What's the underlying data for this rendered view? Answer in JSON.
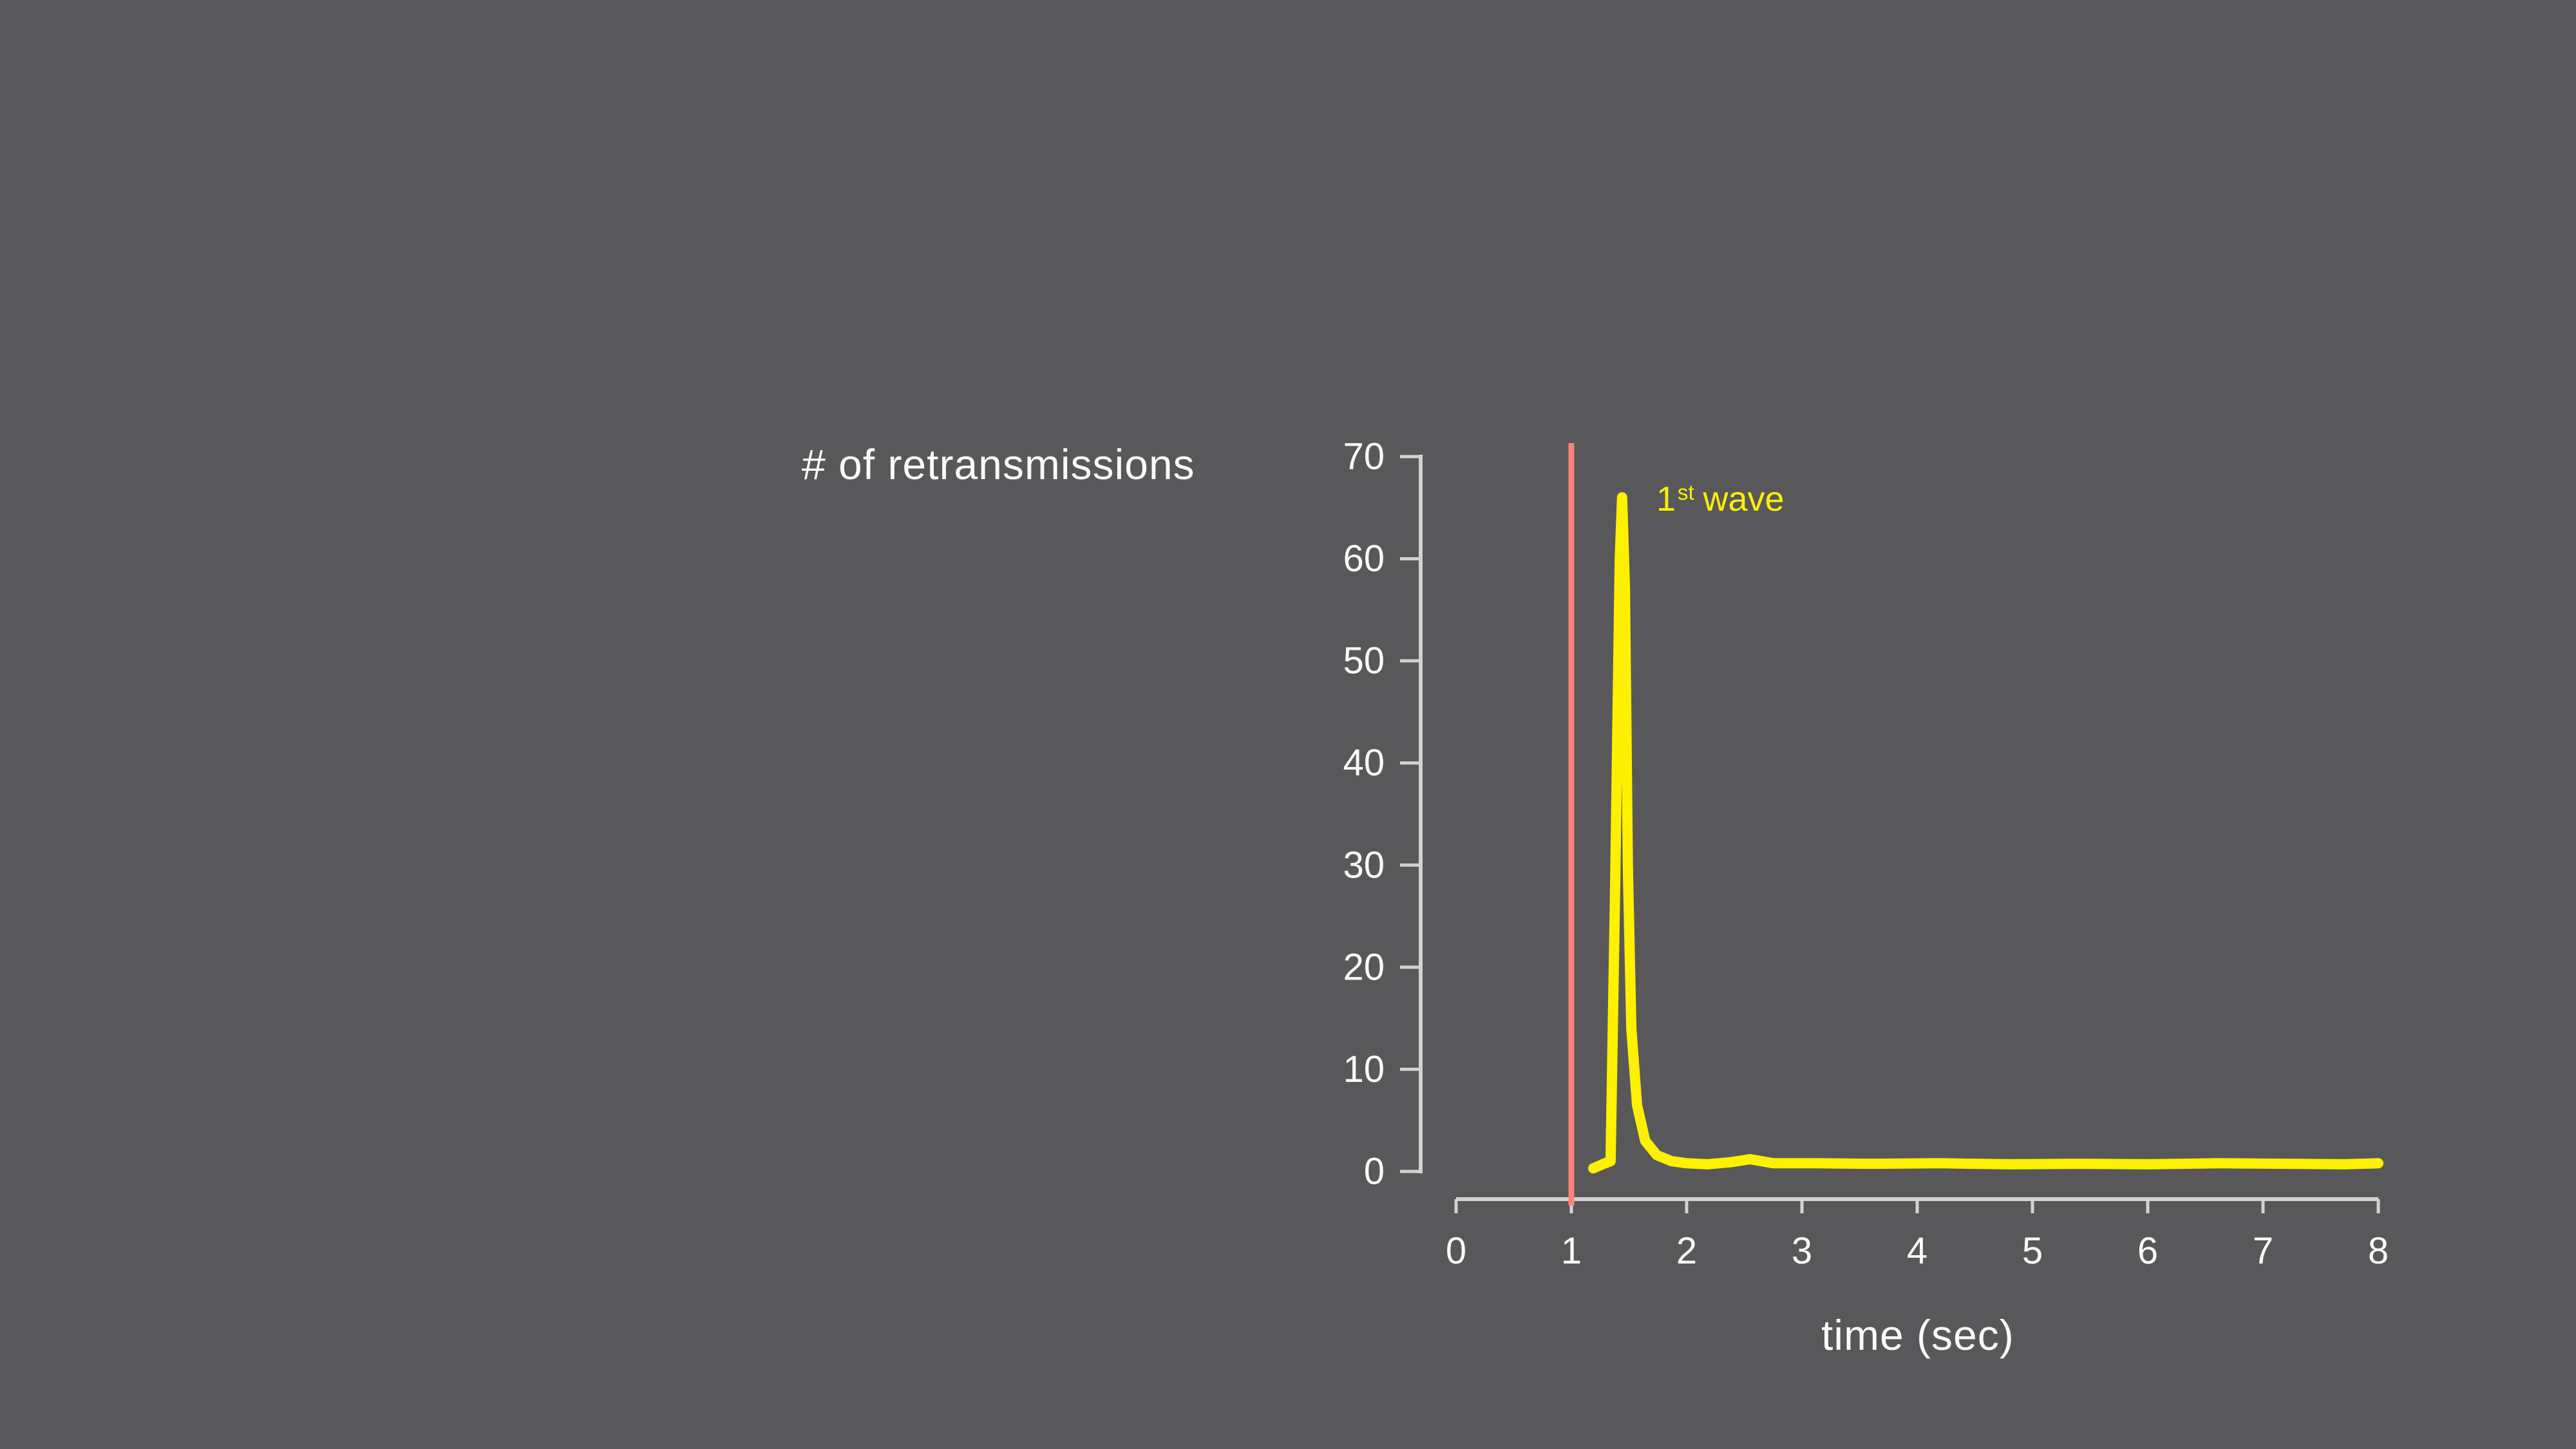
{
  "slide": {
    "background_color": "#58585A"
  },
  "chart_data": {
    "type": "line",
    "title": "# of retransmissions",
    "xlabel": "time (sec)",
    "ylabel": "# of retransmissions",
    "xlim": [
      0,
      8
    ],
    "ylim": [
      0,
      70
    ],
    "x_ticks": [
      0,
      1,
      2,
      3,
      4,
      5,
      6,
      7,
      8
    ],
    "y_ticks": [
      0,
      10,
      20,
      30,
      40,
      50,
      60,
      70
    ],
    "grid": false,
    "legend": "none",
    "colors": {
      "axis": "#d2d2d2",
      "tick_label": "#fafafa",
      "series": "#fdf000",
      "event_line": "#f9857c"
    },
    "series": [
      {
        "name": "retransmissions",
        "color": "#fdf000",
        "x": [
          1.19,
          1.27,
          1.34,
          1.38,
          1.42,
          1.44,
          1.465,
          1.49,
          1.52,
          1.57,
          1.64,
          1.74,
          1.87,
          2.0,
          2.18,
          2.38,
          2.55,
          2.75,
          3.1,
          3.6,
          4.2,
          4.8,
          5.4,
          6.0,
          6.6,
          7.2,
          7.7,
          8.0
        ],
        "y": [
          0.3,
          0.7,
          1.0,
          28,
          60,
          66,
          57,
          30,
          14,
          6.5,
          3.0,
          1.6,
          1.0,
          0.8,
          0.7,
          0.9,
          1.2,
          0.8,
          0.8,
          0.75,
          0.8,
          0.7,
          0.75,
          0.7,
          0.8,
          0.75,
          0.7,
          0.8
        ]
      }
    ],
    "event_line": {
      "x": 1,
      "color": "#f9857c"
    },
    "annotation": {
      "prefix": "1",
      "sup": "st",
      "suffix": "wave",
      "color": "#fdf000"
    },
    "peak_value": 66,
    "peak_time": 1.44
  }
}
